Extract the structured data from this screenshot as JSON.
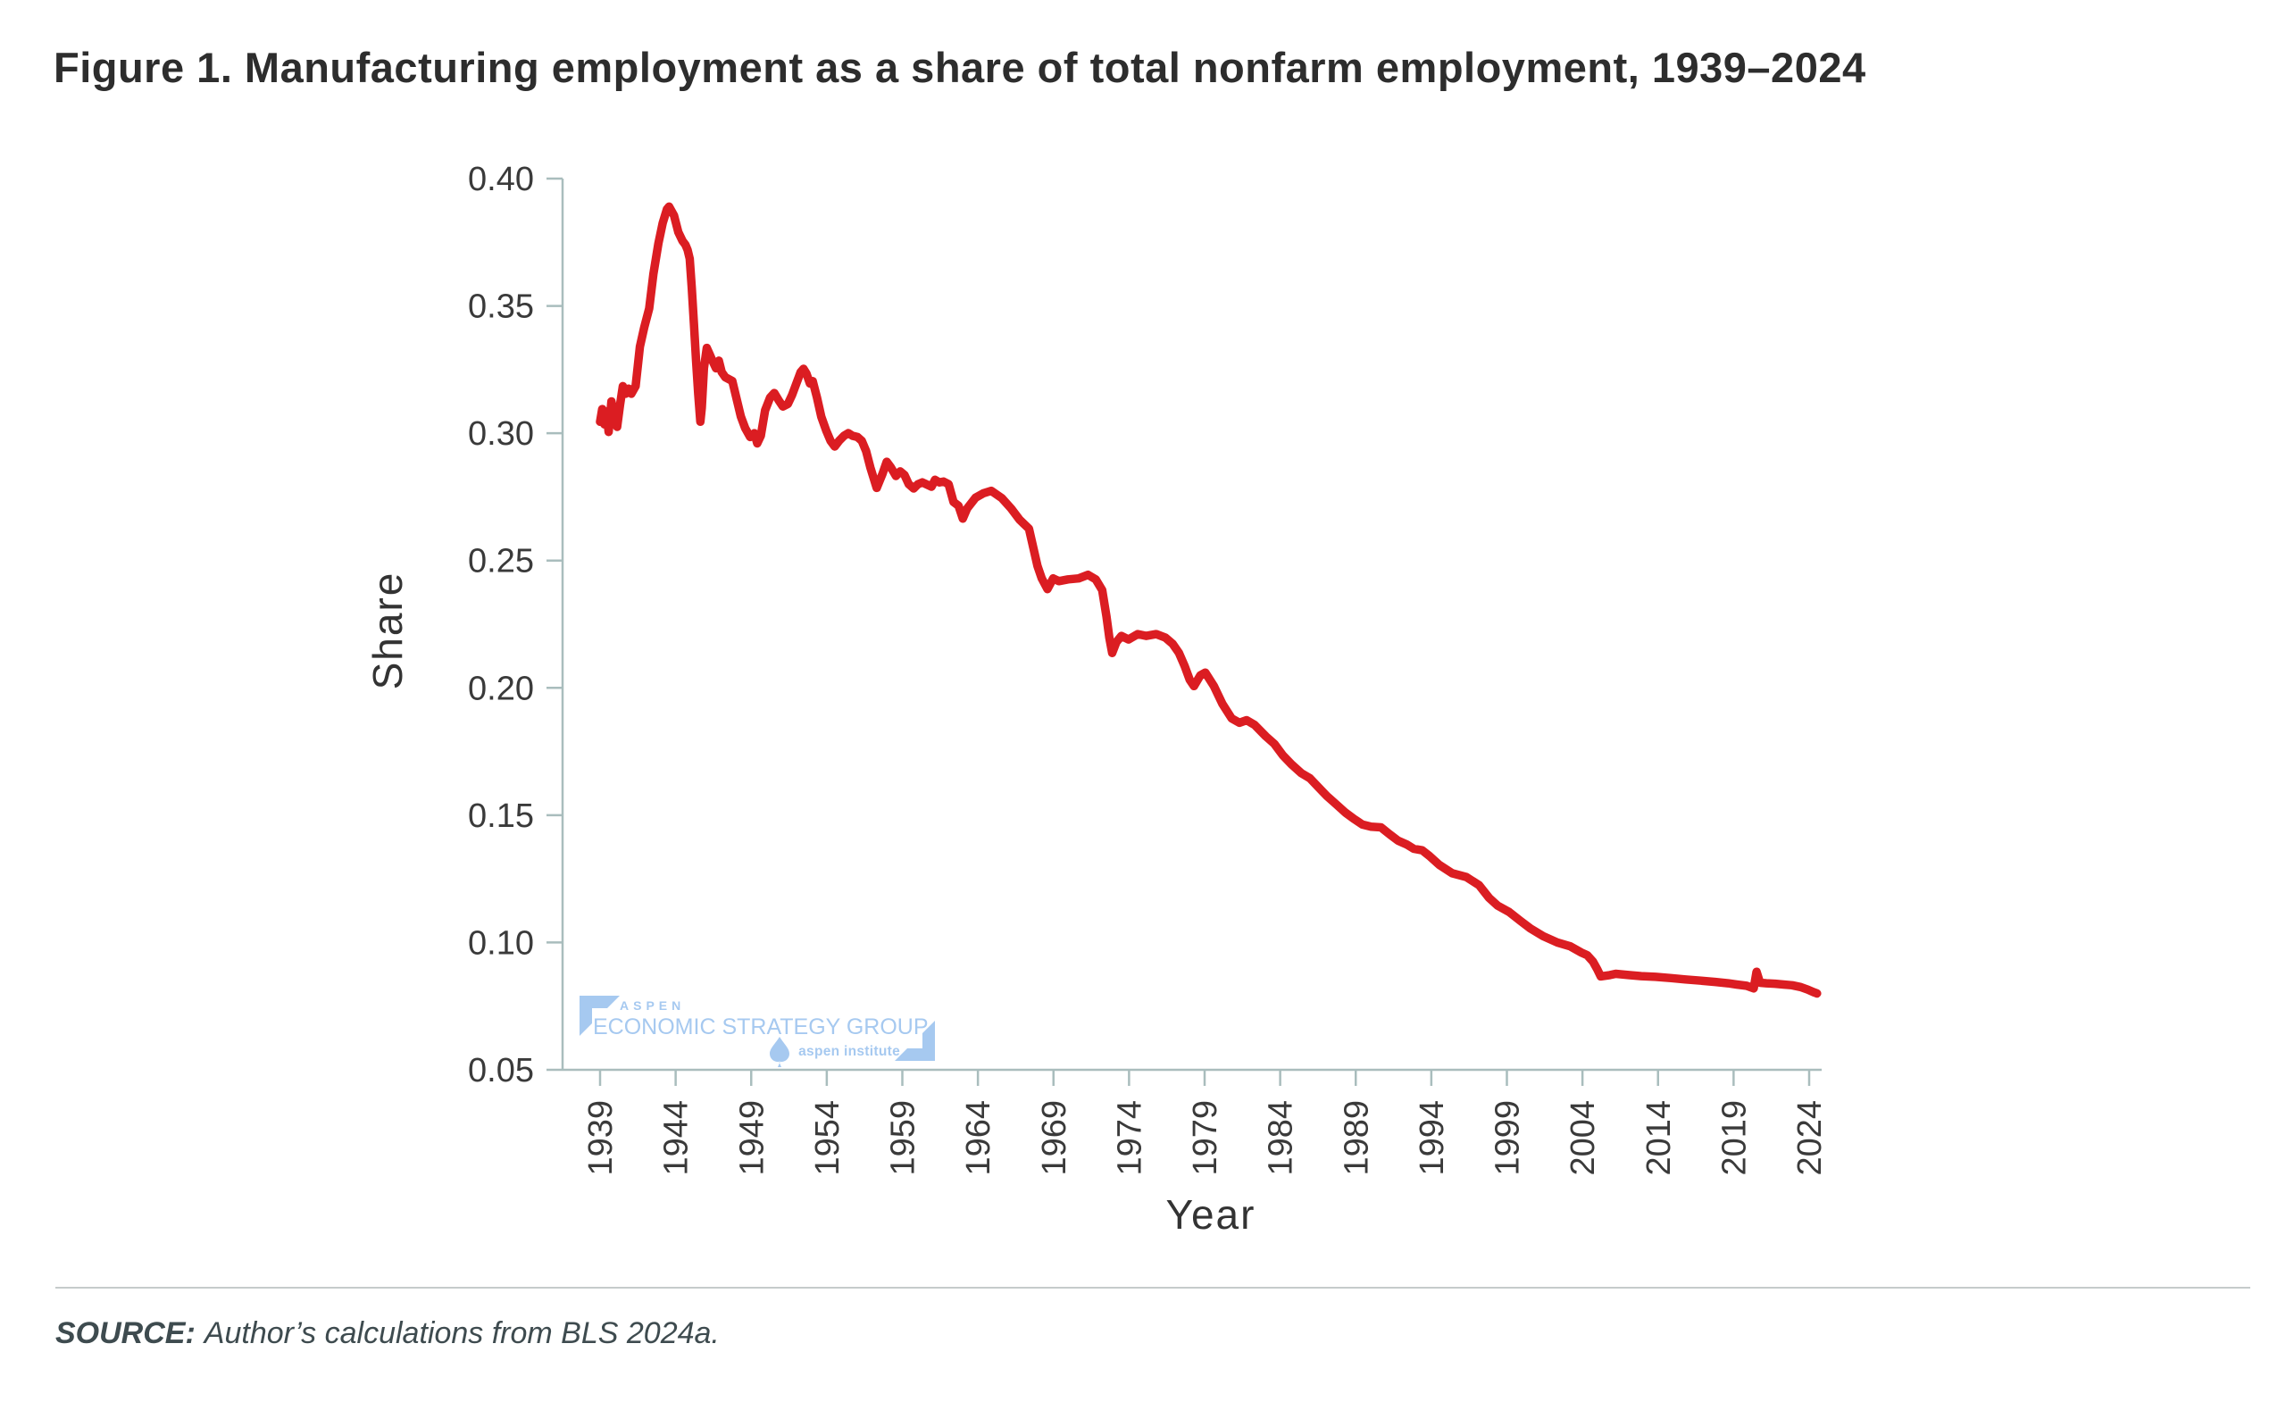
{
  "title": "Figure 1. Manufacturing employment as a share of total nonfarm employment, 1939–2024",
  "source": {
    "label": "SOURCE:",
    "text": "Author’s calculations from BLS 2024a."
  },
  "watermark": {
    "org": "ASPEN",
    "group": "ECONOMIC STRATEGY GROUP",
    "institute": "aspen institute",
    "color": "#a6c9f0"
  },
  "chart_data": {
    "type": "line",
    "title": "Figure 1. Manufacturing employment as a share of total nonfarm employment, 1939–2024",
    "xlabel": "Year",
    "ylabel": "Share",
    "ylim": [
      0.05,
      0.4
    ],
    "x_range_years": [
      1939,
      2024.6
    ],
    "grid": false,
    "legend": "none",
    "line_color": "#db1d22",
    "axis_color": "#a9bdbd",
    "tick_label_color": "#3a3a3a",
    "y_tick_labels": [
      "0.40",
      "0.35",
      "0.30",
      "0.25",
      "0.20",
      "0.15",
      "0.10",
      "0.05"
    ],
    "x_tick_labels": [
      "1939",
      "1944",
      "1949",
      "1954",
      "1959",
      "1964",
      "1969",
      "1974",
      "1979",
      "1984",
      "1989",
      "1994",
      "1999",
      "2004",
      "2014",
      "2019",
      "2024"
    ],
    "series": [
      {
        "name": "Manufacturing share of total nonfarm employment",
        "points": [
          [
            1939.0,
            0.3045
          ],
          [
            1939.15,
            0.3095
          ],
          [
            1939.3,
            0.3035
          ],
          [
            1939.45,
            0.3085
          ],
          [
            1939.6,
            0.3005
          ],
          [
            1939.8,
            0.3125
          ],
          [
            1940.0,
            0.3065
          ],
          [
            1940.2,
            0.3025
          ],
          [
            1940.4,
            0.311
          ],
          [
            1940.6,
            0.3185
          ],
          [
            1940.8,
            0.3155
          ],
          [
            1941.0,
            0.3175
          ],
          [
            1941.2,
            0.3155
          ],
          [
            1941.5,
            0.3185
          ],
          [
            1941.8,
            0.334
          ],
          [
            1942.1,
            0.3415
          ],
          [
            1942.45,
            0.349
          ],
          [
            1942.75,
            0.3625
          ],
          [
            1943.1,
            0.3745
          ],
          [
            1943.4,
            0.3825
          ],
          [
            1943.7,
            0.388
          ],
          [
            1943.85,
            0.389
          ],
          [
            1944.2,
            0.3855
          ],
          [
            1944.5,
            0.379
          ],
          [
            1944.8,
            0.3755
          ],
          [
            1945.0,
            0.374
          ],
          [
            1945.15,
            0.372
          ],
          [
            1945.3,
            0.3685
          ],
          [
            1945.45,
            0.357
          ],
          [
            1945.6,
            0.343
          ],
          [
            1945.75,
            0.3285
          ],
          [
            1945.9,
            0.3155
          ],
          [
            1946.05,
            0.3045
          ],
          [
            1946.15,
            0.31
          ],
          [
            1946.3,
            0.3255
          ],
          [
            1946.5,
            0.3335
          ],
          [
            1946.7,
            0.331
          ],
          [
            1946.9,
            0.3285
          ],
          [
            1947.15,
            0.3255
          ],
          [
            1947.35,
            0.3285
          ],
          [
            1947.55,
            0.324
          ],
          [
            1947.8,
            0.322
          ],
          [
            1948.3,
            0.3205
          ],
          [
            1948.9,
            0.3065
          ],
          [
            1949.2,
            0.302
          ],
          [
            1949.55,
            0.2985
          ],
          [
            1949.85,
            0.3
          ],
          [
            1950.05,
            0.296
          ],
          [
            1950.3,
            0.299
          ],
          [
            1950.6,
            0.309
          ],
          [
            1950.95,
            0.314
          ],
          [
            1951.25,
            0.3158
          ],
          [
            1951.55,
            0.313
          ],
          [
            1951.85,
            0.3105
          ],
          [
            1952.2,
            0.3115
          ],
          [
            1952.5,
            0.315
          ],
          [
            1952.8,
            0.3195
          ],
          [
            1953.1,
            0.324
          ],
          [
            1953.3,
            0.3253
          ],
          [
            1953.5,
            0.3235
          ],
          [
            1953.75,
            0.3195
          ],
          [
            1953.95,
            0.3205
          ],
          [
            1954.25,
            0.314
          ],
          [
            1954.55,
            0.3065
          ],
          [
            1954.9,
            0.301
          ],
          [
            1955.2,
            0.297
          ],
          [
            1955.5,
            0.2948
          ],
          [
            1955.8,
            0.297
          ],
          [
            1956.15,
            0.299
          ],
          [
            1956.45,
            0.3
          ],
          [
            1956.75,
            0.299
          ],
          [
            1957.1,
            0.2985
          ],
          [
            1957.4,
            0.297
          ],
          [
            1957.7,
            0.293
          ],
          [
            1958.0,
            0.2865
          ],
          [
            1958.2,
            0.283
          ],
          [
            1958.45,
            0.2785
          ],
          [
            1958.85,
            0.284
          ],
          [
            1959.15,
            0.2888
          ],
          [
            1959.45,
            0.2865
          ],
          [
            1959.8,
            0.2832
          ],
          [
            1960.1,
            0.285
          ],
          [
            1960.4,
            0.2836
          ],
          [
            1960.7,
            0.28
          ],
          [
            1961.05,
            0.2783
          ],
          [
            1961.35,
            0.28
          ],
          [
            1961.65,
            0.2807
          ],
          [
            1962.3,
            0.279
          ],
          [
            1962.55,
            0.2817
          ],
          [
            1962.85,
            0.2807
          ],
          [
            1963.15,
            0.281
          ],
          [
            1963.5,
            0.28
          ],
          [
            1963.85,
            0.273
          ],
          [
            1964.2,
            0.2715
          ],
          [
            1964.5,
            0.2665
          ],
          [
            1964.8,
            0.2704
          ],
          [
            1965.4,
            0.2747
          ],
          [
            1965.95,
            0.2764
          ],
          [
            1966.5,
            0.2774
          ],
          [
            1967.25,
            0.2745
          ],
          [
            1967.9,
            0.2704
          ],
          [
            1968.5,
            0.266
          ],
          [
            1969.15,
            0.2625
          ],
          [
            1969.75,
            0.2479
          ],
          [
            1970.05,
            0.243
          ],
          [
            1970.45,
            0.2388
          ],
          [
            1970.85,
            0.243
          ],
          [
            1971.25,
            0.2419
          ],
          [
            1971.9,
            0.2426
          ],
          [
            1972.65,
            0.243
          ],
          [
            1973.3,
            0.2444
          ],
          [
            1973.85,
            0.2426
          ],
          [
            1974.3,
            0.2384
          ],
          [
            1974.6,
            0.228
          ],
          [
            1974.8,
            0.2197
          ],
          [
            1975.0,
            0.2137
          ],
          [
            1975.3,
            0.218
          ],
          [
            1975.65,
            0.2204
          ],
          [
            1976.15,
            0.219
          ],
          [
            1976.8,
            0.2211
          ],
          [
            1977.4,
            0.2204
          ],
          [
            1978.1,
            0.2211
          ],
          [
            1978.75,
            0.2197
          ],
          [
            1979.25,
            0.2173
          ],
          [
            1979.7,
            0.2137
          ],
          [
            1980.1,
            0.2085
          ],
          [
            1980.45,
            0.2032
          ],
          [
            1980.75,
            0.2007
          ],
          [
            1981.2,
            0.2049
          ],
          [
            1981.55,
            0.206
          ],
          [
            1982.15,
            0.2007
          ],
          [
            1982.75,
            0.1937
          ],
          [
            1983.4,
            0.188
          ],
          [
            1983.95,
            0.1863
          ],
          [
            1984.45,
            0.1873
          ],
          [
            1985.0,
            0.1855
          ],
          [
            1985.8,
            0.181
          ],
          [
            1986.4,
            0.178
          ],
          [
            1987.0,
            0.1735
          ],
          [
            1987.6,
            0.17
          ],
          [
            1988.3,
            0.1665
          ],
          [
            1988.9,
            0.1645
          ],
          [
            1989.5,
            0.161
          ],
          [
            1990.1,
            0.1575
          ],
          [
            1990.7,
            0.1545
          ],
          [
            1991.4,
            0.151
          ],
          [
            1992.0,
            0.1485
          ],
          [
            1992.6,
            0.1463
          ],
          [
            1993.2,
            0.1455
          ],
          [
            1993.9,
            0.1452
          ],
          [
            1994.5,
            0.1425
          ],
          [
            1995.1,
            0.14
          ],
          [
            1995.7,
            0.1385
          ],
          [
            1996.2,
            0.1368
          ],
          [
            1996.8,
            0.1362
          ],
          [
            1997.3,
            0.134
          ],
          [
            1998.0,
            0.1305
          ],
          [
            1998.9,
            0.1272
          ],
          [
            1999.9,
            0.1257
          ],
          [
            2000.8,
            0.1225
          ],
          [
            2001.5,
            0.1175
          ],
          [
            2002.1,
            0.1145
          ],
          [
            2002.9,
            0.112
          ],
          [
            2003.7,
            0.1085
          ],
          [
            2004.4,
            0.1055
          ],
          [
            2005.3,
            0.1025
          ],
          [
            2006.3,
            0.1
          ],
          [
            2007.2,
            0.0985
          ],
          [
            2008.0,
            0.096
          ],
          [
            2008.4,
            0.095
          ],
          [
            2008.8,
            0.0925
          ],
          [
            2009.1,
            0.0895
          ],
          [
            2009.35,
            0.0867
          ],
          [
            2010.0,
            0.0872
          ],
          [
            2010.4,
            0.0877
          ],
          [
            2011.3,
            0.0872
          ],
          [
            2012.2,
            0.0868
          ],
          [
            2013.2,
            0.0865
          ],
          [
            2014.3,
            0.086
          ],
          [
            2015.3,
            0.0855
          ],
          [
            2016.4,
            0.085
          ],
          [
            2017.4,
            0.0845
          ],
          [
            2018.3,
            0.084
          ],
          [
            2018.9,
            0.0835
          ],
          [
            2019.6,
            0.083
          ],
          [
            2020.1,
            0.082
          ],
          [
            2020.3,
            0.0885
          ],
          [
            2020.55,
            0.0842
          ],
          [
            2021.0,
            0.084
          ],
          [
            2021.6,
            0.0838
          ],
          [
            2022.2,
            0.0835
          ],
          [
            2022.8,
            0.0832
          ],
          [
            2023.4,
            0.0825
          ],
          [
            2023.9,
            0.0815
          ],
          [
            2024.3,
            0.0805
          ],
          [
            2024.55,
            0.08
          ]
        ]
      }
    ]
  }
}
